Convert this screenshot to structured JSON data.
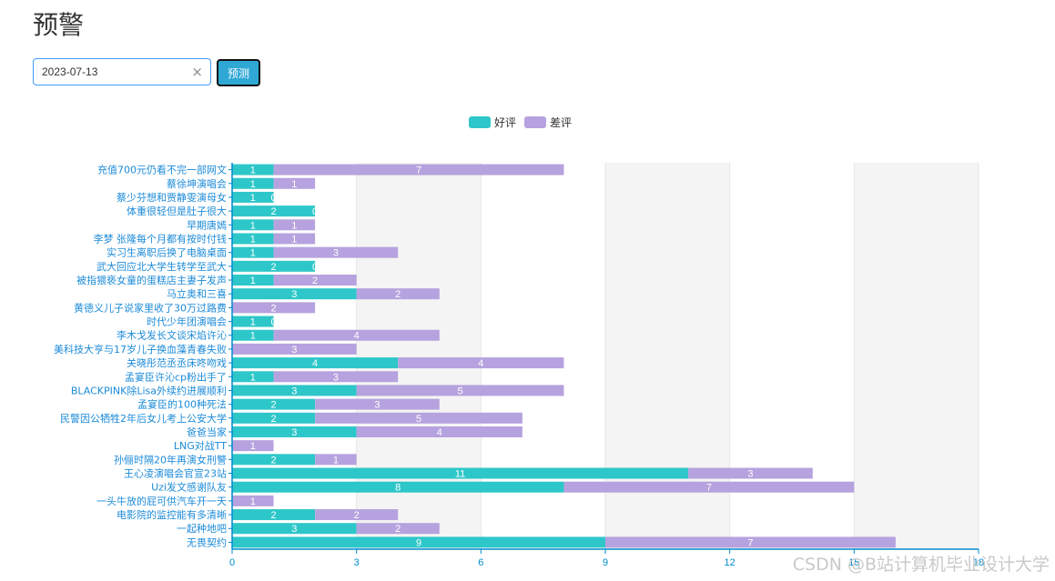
{
  "page": {
    "title": "预警",
    "date_value": "2023-07-13",
    "clear_symbol": "×",
    "predict_label": "预测",
    "watermark": "CSDN @B站计算机毕业设计大学"
  },
  "colors": {
    "good": "#2ec7c9",
    "bad": "#b6a2de",
    "axis": "#008acd",
    "label": "#1c8bd8"
  },
  "chart_data": {
    "type": "bar",
    "orientation": "horizontal",
    "stacked": true,
    "legend_position": "top-center",
    "categories": [
      "充值700元仍看不完一部网文",
      "蔡徐坤演唱会",
      "蔡少芬想和贾静雯演母女",
      "体重很轻但是肚子很大",
      "早期唐嫣",
      "李梦 张隆每个月都有按时付钱",
      "实习生离职后换了电脑桌面",
      "武大回应北大学生转学至武大",
      "被指猥亵女童的蛋糕店主妻子发声",
      "马立奥和三喜",
      "黄德义儿子说家里收了30万过路费",
      "时代少年团演唱会",
      "李木戈发长文谈宋焰许沁",
      "美科技大亨与17岁儿子换血藻青春失败",
      "关晓彤范丞丞床咚吻戏",
      "孟宴臣许沁cp粉出手了",
      "BLACKPINK除Lisa外续约进展顺利",
      "孟宴臣的100种死法",
      "民警因公牺牲2年后女儿考上公安大学",
      "爸爸当家",
      "LNG对战TT",
      "孙俪时隔20年再演女刑警",
      "王心凌演唱会官宣23站",
      "Uzi发文感谢队友",
      "一头牛放的屁可供汽车开一天",
      "电影院的监控能有多清晰",
      "一起种地吧",
      "无畏契约"
    ],
    "series": [
      {
        "name": "好评",
        "values": [
          1,
          1,
          1,
          2,
          1,
          1,
          1,
          2,
          1,
          3,
          0,
          1,
          1,
          0,
          4,
          1,
          3,
          2,
          2,
          3,
          0,
          2,
          11,
          8,
          0,
          2,
          3,
          9
        ]
      },
      {
        "name": "差评",
        "values": [
          7,
          1,
          0,
          0,
          1,
          1,
          3,
          0,
          2,
          2,
          2,
          0,
          4,
          3,
          4,
          3,
          5,
          3,
          5,
          4,
          1,
          1,
          3,
          7,
          1,
          2,
          2,
          7
        ]
      }
    ],
    "x_ticks": [
      0,
      3,
      6,
      9,
      12,
      15,
      18
    ],
    "xlim": [
      0,
      18
    ],
    "grid": true
  }
}
